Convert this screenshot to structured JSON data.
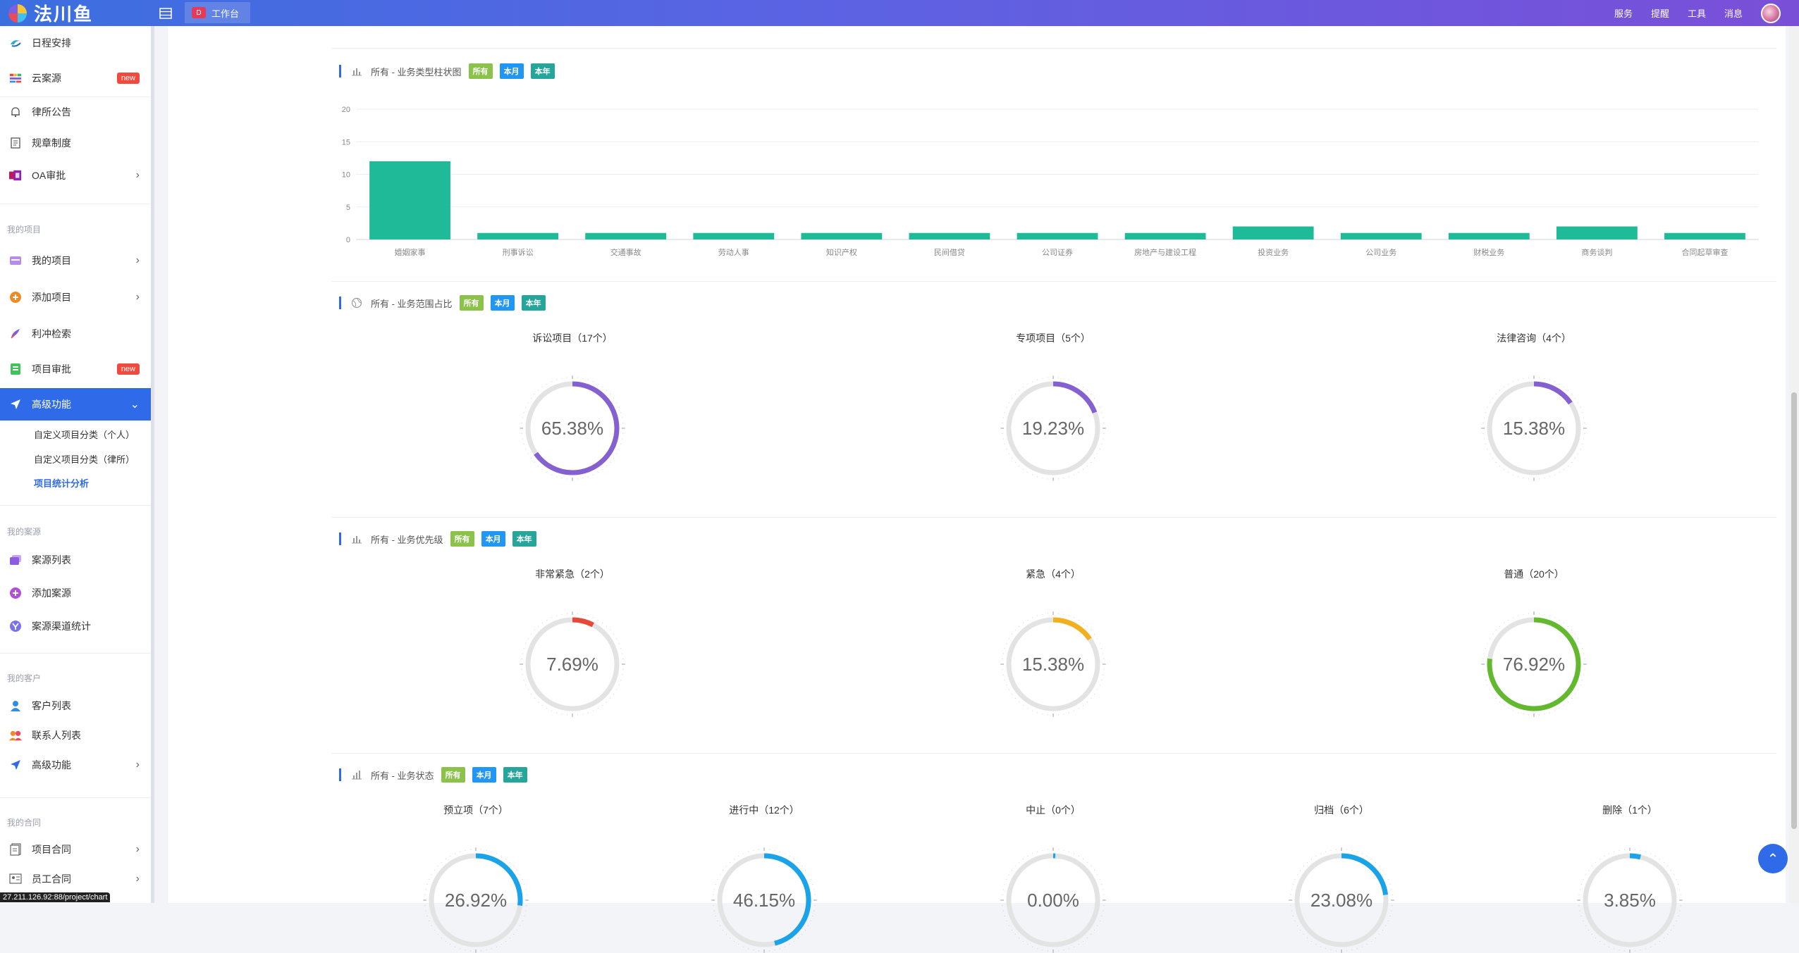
{
  "app": {
    "logo_text": "法川鱼",
    "workbench_tab": "工作台",
    "top_nav": [
      "服务",
      "提醒",
      "工具",
      "消息"
    ]
  },
  "sidebar": {
    "items_top": [
      {
        "label": "日程安排",
        "icon": "calendar-swirl-icon"
      },
      {
        "label": "云案源",
        "icon": "cloud-case-icon",
        "badge": "new"
      },
      {
        "label": "律所公告",
        "icon": "bell-icon"
      },
      {
        "label": "规章制度",
        "icon": "document-icon"
      },
      {
        "label": "OA审批",
        "icon": "oa-icon"
      }
    ],
    "group_projects": "我的项目",
    "items_projects": [
      {
        "label": "我的项目",
        "icon": "folder-icon"
      },
      {
        "label": "添加项目",
        "icon": "add-circle-icon"
      },
      {
        "label": "利冲检索",
        "icon": "feather-search-icon"
      },
      {
        "label": "项目审批",
        "icon": "approval-icon",
        "badge": "new"
      },
      {
        "label": "高级功能",
        "icon": "send-icon"
      }
    ],
    "sub_items": [
      "自定义项目分类（个人）",
      "自定义项目分类（律所）",
      "项目统计分析"
    ],
    "group_cases": "我的案源",
    "items_cases": [
      {
        "label": "案源列表",
        "icon": "stack-icon"
      },
      {
        "label": "添加案源",
        "icon": "add-purple-icon"
      },
      {
        "label": "案源渠道统计",
        "icon": "channel-icon"
      }
    ],
    "group_clients": "我的客户",
    "items_clients": [
      {
        "label": "客户列表",
        "icon": "user-icon"
      },
      {
        "label": "联系人列表",
        "icon": "contacts-icon"
      },
      {
        "label": "高级功能",
        "icon": "send-icon"
      }
    ],
    "group_contracts": "我的合同",
    "items_contracts": [
      {
        "label": "项目合同",
        "icon": "contract-icon"
      },
      {
        "label": "员工合同",
        "icon": "staff-contract-icon"
      }
    ],
    "status_url": "27.211.126.92:88/project/chart"
  },
  "sections": {
    "bar": {
      "title": "所有 - 业务类型柱状图",
      "tags": [
        "所有",
        "本月",
        "本年"
      ]
    },
    "scope": {
      "title": "所有 - 业务范围占比",
      "tags": [
        "所有",
        "本月",
        "本年"
      ]
    },
    "priority": {
      "title": "所有 - 业务优先级",
      "tags": [
        "所有",
        "本月",
        "本年"
      ]
    },
    "status": {
      "title": "所有 - 业务状态",
      "tags": [
        "所有",
        "本月",
        "本年"
      ]
    }
  },
  "chart_data": [
    {
      "type": "bar",
      "title": "所有 - 业务类型柱状图",
      "categories": [
        "婚姻家事",
        "刑事诉讼",
        "交通事故",
        "劳动人事",
        "知识产权",
        "民间借贷",
        "公司证券",
        "房地产与建设工程",
        "投资业务",
        "公司业务",
        "财税业务",
        "商务谈判",
        "合同起草审查"
      ],
      "values": [
        12,
        1,
        1,
        1,
        1,
        1,
        1,
        1,
        2,
        1,
        1,
        2,
        1
      ],
      "yticks": [
        0,
        5,
        10,
        15,
        20
      ],
      "ylim": [
        0,
        20
      ],
      "grid": true,
      "color": "#1fbb98"
    },
    {
      "type": "pie",
      "title": "所有 - 业务范围占比",
      "gauges": [
        {
          "label": "诉讼项目（17个）",
          "percent": 65.38,
          "text": "65.38%",
          "color": "#8560d0"
        },
        {
          "label": "专项项目（5个）",
          "percent": 19.23,
          "text": "19.23%",
          "color": "#8560d0"
        },
        {
          "label": "法律咨询（4个）",
          "percent": 15.38,
          "text": "15.38%",
          "color": "#8560d0"
        }
      ]
    },
    {
      "type": "pie",
      "title": "所有 - 业务优先级",
      "gauges": [
        {
          "label": "非常紧急（2个）",
          "percent": 7.69,
          "text": "7.69%",
          "color": "#e4493a"
        },
        {
          "label": "紧急（4个）",
          "percent": 15.38,
          "text": "15.38%",
          "color": "#f2b01e"
        },
        {
          "label": "普通（20个）",
          "percent": 76.92,
          "text": "76.92%",
          "color": "#62b92e"
        }
      ]
    },
    {
      "type": "pie",
      "title": "所有 - 业务状态",
      "gauges": [
        {
          "label": "预立项（7个）",
          "percent": 26.92,
          "text": "26.92%",
          "color": "#1aa3e8"
        },
        {
          "label": "进行中（12个）",
          "percent": 46.15,
          "text": "46.15%",
          "color": "#1aa3e8"
        },
        {
          "label": "中止（0个）",
          "percent": 0,
          "text": "0.00%",
          "color": "#1aa3e8"
        },
        {
          "label": "归档（6个）",
          "percent": 23.08,
          "text": "23.08%",
          "color": "#1aa3e8"
        },
        {
          "label": "删除（1个）",
          "percent": 3.85,
          "text": "3.85%",
          "color": "#1aa3e8"
        }
      ]
    }
  ]
}
